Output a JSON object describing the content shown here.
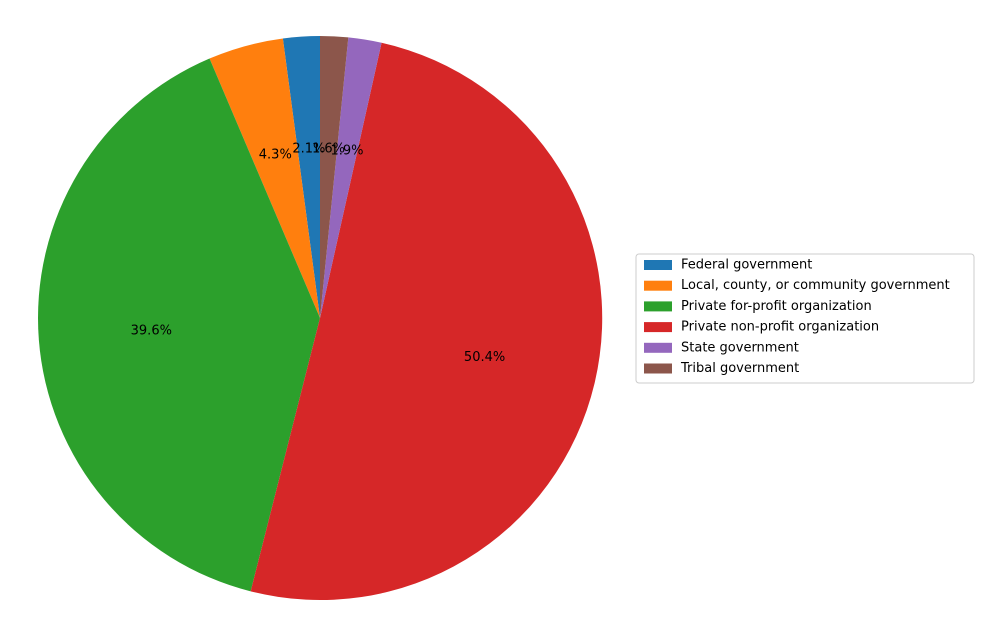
{
  "chart_data": {
    "type": "pie",
    "title": "",
    "start_angle_deg": 90,
    "direction": "counterclockwise",
    "legend_position": "right",
    "slices": [
      {
        "label": "Federal government",
        "value": 2.1,
        "pct_label": "2.1%",
        "color": "#1f77b4"
      },
      {
        "label": "Local, county, or community government",
        "value": 4.3,
        "pct_label": "4.3%",
        "color": "#ff7f0e"
      },
      {
        "label": "Private for-profit organization",
        "value": 39.6,
        "pct_label": "39.6%",
        "color": "#2ca02c"
      },
      {
        "label": "Private non-profit organization",
        "value": 50.4,
        "pct_label": "50.4%",
        "color": "#d62728"
      },
      {
        "label": "State government",
        "value": 1.9,
        "pct_label": "1.9%",
        "color": "#9467bd"
      },
      {
        "label": "Tribal government",
        "value": 1.6,
        "pct_label": "1.6%",
        "color": "#8c564b"
      }
    ]
  }
}
